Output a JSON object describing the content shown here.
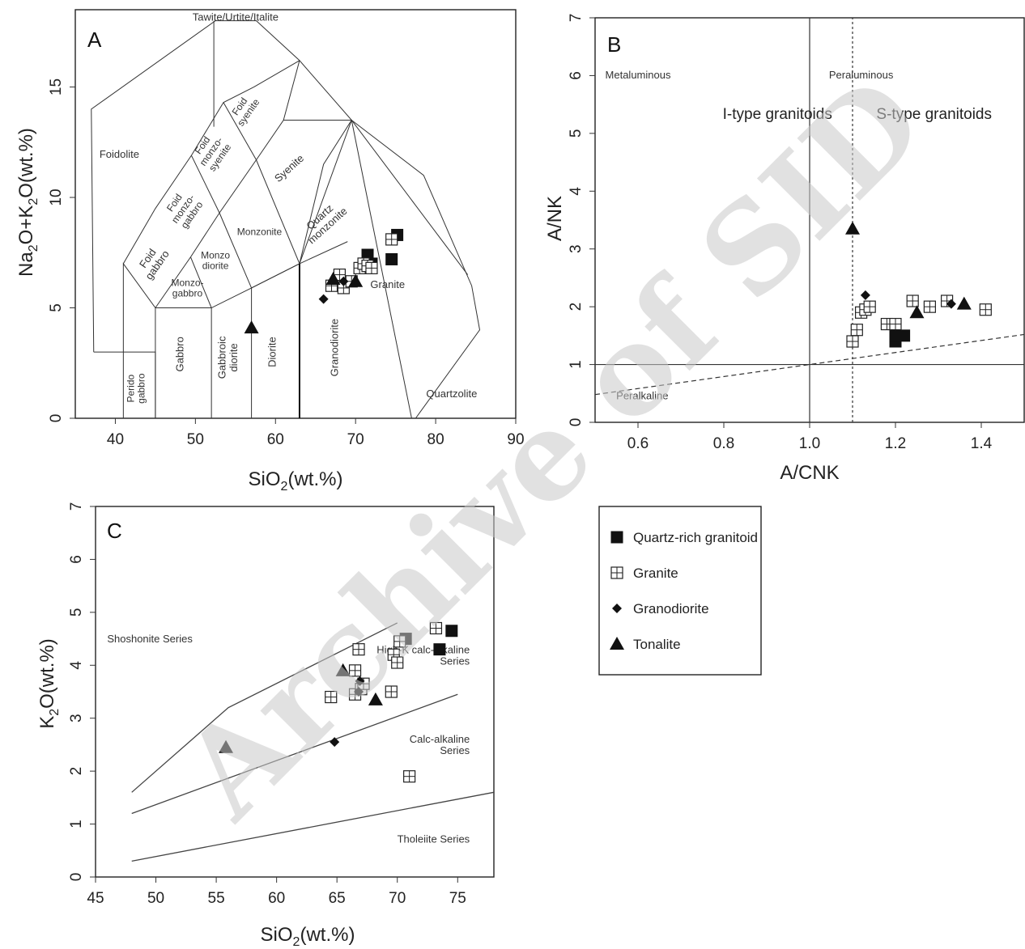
{
  "watermark": "Archive of SID",
  "legend": {
    "items": [
      {
        "key": "quartz",
        "label": "Quartz-rich granitoid",
        "marker": "square-filled"
      },
      {
        "key": "granite",
        "label": "Granite",
        "marker": "square-crossed"
      },
      {
        "key": "granodiorite",
        "label": "Granodiorite",
        "marker": "diamond"
      },
      {
        "key": "tonalite",
        "label": "Tonalite",
        "marker": "triangle"
      }
    ]
  },
  "chart_data": [
    {
      "panel": "A",
      "type": "scatter",
      "subtype": "TAS classification diagram",
      "xlabel": "SiO2(wt.%)",
      "ylabel": "Na2O+K2O(wt.%)",
      "xlim": [
        35,
        90
      ],
      "ylim": [
        0,
        18.5
      ],
      "xticks": [
        40,
        50,
        60,
        70,
        80,
        90
      ],
      "yticks": [
        0,
        5,
        10,
        15
      ],
      "fields": {
        "tawite": "Tawite/Urtite/Italite",
        "foidolite": "Foidolite",
        "foid_syenite": [
          "Foid",
          "syenite"
        ],
        "foid_monzosyenite": [
          "Foid",
          "monzo-",
          "syenite"
        ],
        "foid_monzogabbro": [
          "Foid",
          "monzo-",
          "gabbro"
        ],
        "foid_gabbro": [
          "Foid",
          "gabbro"
        ],
        "syenite": "Syenite",
        "quartz_monzonite": [
          "Quartz",
          "monzonite"
        ],
        "monzonite": "Monzonite",
        "monzodiorite": [
          "Monzo",
          "diorite"
        ],
        "monzogabbro": [
          "Monzo-",
          "gabbro"
        ],
        "granite": "Granite",
        "peridotgabbro": [
          "Perido",
          "gabbro"
        ],
        "gabbro": "Gabbro",
        "gabbroic_diorite": [
          "Gabbroic",
          "diorite"
        ],
        "diorite": "Diorite",
        "granodiorite": "Granodiorite",
        "quartzolite": "Quartzolite"
      },
      "series": [
        {
          "key": "quartz",
          "points": [
            [
              71.5,
              7.4
            ],
            [
              72.0,
              7.0
            ],
            [
              74.5,
              7.2
            ],
            [
              75.2,
              8.3
            ]
          ]
        },
        {
          "key": "granite",
          "points": [
            [
              67.0,
              6.0
            ],
            [
              68.0,
              6.5
            ],
            [
              68.5,
              5.9
            ],
            [
              69.5,
              6.2
            ],
            [
              70.5,
              6.8
            ],
            [
              71.0,
              7.0
            ],
            [
              71.5,
              6.9
            ],
            [
              72.0,
              6.8
            ],
            [
              74.5,
              8.1
            ]
          ]
        },
        {
          "key": "granodiorite",
          "points": [
            [
              66.0,
              5.4
            ],
            [
              68.5,
              6.2
            ]
          ]
        },
        {
          "key": "tonalite",
          "points": [
            [
              57.0,
              4.1
            ],
            [
              67.2,
              6.3
            ],
            [
              70.0,
              6.2
            ]
          ]
        }
      ]
    },
    {
      "panel": "B",
      "type": "scatter",
      "subtype": "Shand index diagram",
      "xlabel": "A/CNK",
      "ylabel": "A/NK",
      "xlim": [
        0.5,
        1.5
      ],
      "ylim": [
        0,
        7
      ],
      "xticks": [
        0.6,
        0.8,
        1.0,
        1.2,
        1.4
      ],
      "yticks": [
        0,
        1,
        2,
        3,
        4,
        5,
        6,
        7
      ],
      "labels": {
        "metaluminous": "Metaluminous",
        "peraluminous": "Peraluminous",
        "peralkaline": "Peralkaline",
        "i_type": "I-type granitoids",
        "s_type": "S-type granitoids"
      },
      "series": [
        {
          "key": "quartz",
          "points": [
            [
              1.2,
              1.6
            ],
            [
              1.2,
              1.4
            ],
            [
              1.22,
              1.5
            ],
            [
              1.2,
              1.5
            ]
          ]
        },
        {
          "key": "granite",
          "points": [
            [
              1.1,
              1.4
            ],
            [
              1.11,
              1.6
            ],
            [
              1.12,
              1.9
            ],
            [
              1.13,
              1.95
            ],
            [
              1.14,
              2.0
            ],
            [
              1.18,
              1.7
            ],
            [
              1.2,
              1.7
            ],
            [
              1.24,
              2.1
            ],
            [
              1.28,
              2.0
            ],
            [
              1.32,
              2.1
            ],
            [
              1.41,
              1.95
            ]
          ]
        },
        {
          "key": "granodiorite",
          "points": [
            [
              1.13,
              2.2
            ],
            [
              1.33,
              2.05
            ]
          ]
        },
        {
          "key": "tonalite",
          "points": [
            [
              1.1,
              3.35
            ],
            [
              1.25,
              1.9
            ],
            [
              1.36,
              2.05
            ]
          ]
        }
      ]
    },
    {
      "panel": "C",
      "type": "scatter",
      "subtype": "K2O vs SiO2 series diagram",
      "xlabel": "SiO2(wt.%)",
      "ylabel": "K2O(wt.%)",
      "xlim": [
        45,
        78
      ],
      "ylim": [
        0,
        7
      ],
      "xticks": [
        45,
        50,
        55,
        60,
        65,
        70,
        75
      ],
      "yticks": [
        0,
        1,
        2,
        3,
        4,
        5,
        6,
        7
      ],
      "labels": {
        "shoshonite": "Shoshonite Series",
        "highk": [
          "High-K calc-alkaline",
          "Series"
        ],
        "calcalk": [
          "Calc-alkaline",
          "Series"
        ],
        "tholeiite": "Tholeiite Series"
      },
      "boundaries": [
        [
          [
            48,
            1.6
          ],
          [
            56,
            3.2
          ],
          [
            70,
            4.8
          ]
        ],
        [
          [
            48,
            1.2
          ],
          [
            75,
            3.45
          ]
        ],
        [
          [
            48,
            0.3
          ],
          [
            78,
            1.6
          ]
        ]
      ],
      "series": [
        {
          "key": "quartz",
          "points": [
            [
              70.7,
              4.5
            ],
            [
              73.5,
              4.3
            ],
            [
              74.5,
              4.65
            ]
          ]
        },
        {
          "key": "granite",
          "points": [
            [
              64.5,
              3.4
            ],
            [
              66.5,
              3.45
            ],
            [
              66.5,
              3.9
            ],
            [
              66.8,
              4.3
            ],
            [
              67.0,
              3.55
            ],
            [
              67.2,
              3.65
            ],
            [
              69.5,
              3.5
            ],
            [
              69.7,
              4.2
            ],
            [
              70.0,
              4.05
            ],
            [
              70.2,
              4.45
            ],
            [
              73.2,
              4.7
            ],
            [
              71.0,
              1.9
            ]
          ]
        },
        {
          "key": "granodiorite",
          "points": [
            [
              64.8,
              2.55
            ],
            [
              66.8,
              3.5
            ],
            [
              66.9,
              3.7
            ]
          ]
        },
        {
          "key": "tonalite",
          "points": [
            [
              55.8,
              2.45
            ],
            [
              65.5,
              3.9
            ],
            [
              68.2,
              3.35
            ]
          ]
        }
      ]
    }
  ]
}
